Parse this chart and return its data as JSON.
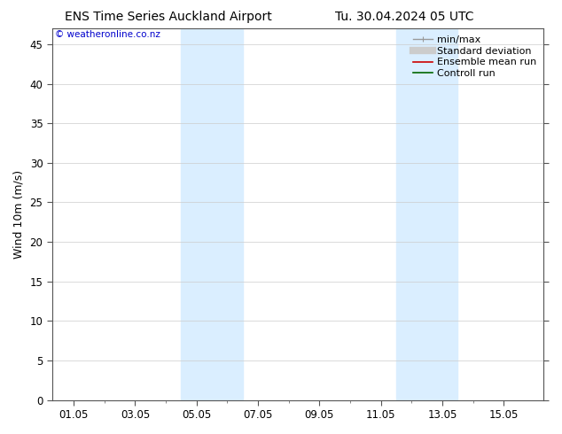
{
  "title_left": "ENS Time Series Auckland Airport",
  "title_right": "Tu. 30.04.2024 05 UTC",
  "ylabel": "Wind 10m (m/s)",
  "watermark": "© weatheronline.co.nz",
  "watermark_color": "#0000cc",
  "ylim": [
    0,
    47
  ],
  "yticks": [
    0,
    5,
    10,
    15,
    20,
    25,
    30,
    35,
    40,
    45
  ],
  "xtick_labels": [
    "01.05",
    "03.05",
    "05.05",
    "07.05",
    "09.05",
    "11.05",
    "13.05",
    "15.05"
  ],
  "xtick_positions": [
    0,
    2,
    4,
    6,
    8,
    10,
    12,
    14
  ],
  "x_minor_ticks": [
    1,
    3,
    5,
    7,
    9,
    11,
    13
  ],
  "xlim": [
    -0.7,
    15.3
  ],
  "background_color": "#ffffff",
  "plot_bg_color": "#ffffff",
  "shaded_bands": [
    {
      "x_start": 3.5,
      "x_end": 5.5,
      "color": "#daeeff"
    },
    {
      "x_start": 10.5,
      "x_end": 12.5,
      "color": "#daeeff"
    }
  ],
  "grid_color": "#cccccc",
  "spine_color": "#555555",
  "legend_items": [
    {
      "label": "min/max",
      "color": "#999999",
      "lw": 1.0,
      "style": "minmax"
    },
    {
      "label": "Standard deviation",
      "color": "#cccccc",
      "lw": 6,
      "style": "solid"
    },
    {
      "label": "Ensemble mean run",
      "color": "#cc0000",
      "lw": 1.2,
      "style": "solid"
    },
    {
      "label": "Controll run",
      "color": "#006600",
      "lw": 1.2,
      "style": "solid"
    }
  ],
  "title_fontsize": 10,
  "axis_label_fontsize": 9,
  "tick_fontsize": 8.5,
  "legend_fontsize": 8,
  "watermark_fontsize": 7.5
}
